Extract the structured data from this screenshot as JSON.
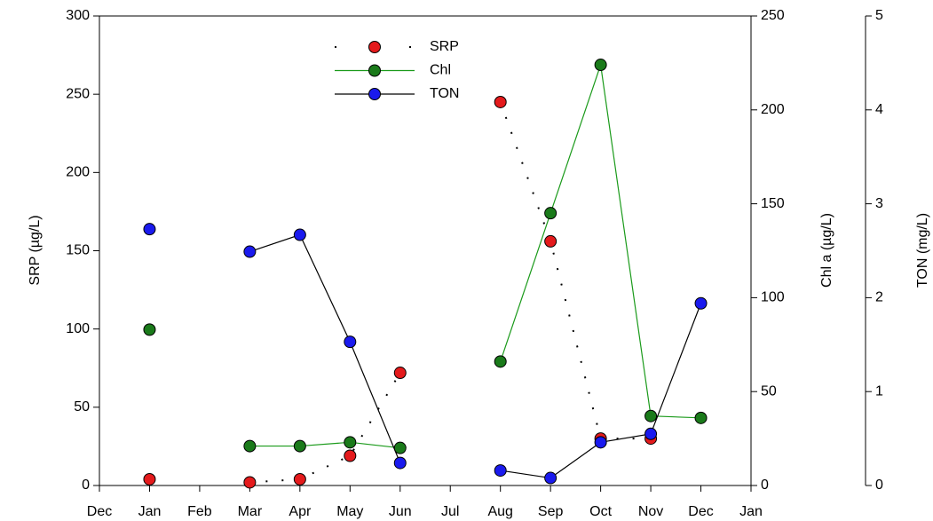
{
  "chart_data": {
    "type": "line",
    "categories": [
      "Dec",
      "Jan",
      "Feb",
      "Mar",
      "Apr",
      "May",
      "Jun",
      "Jul",
      "Aug",
      "Sep",
      "Oct",
      "Nov",
      "Dec",
      "Jan"
    ],
    "ylabel": "SRP (µg/L)",
    "y2label": "Chl a (µg/L)",
    "y3label": "TON (mg/L)",
    "ylim": [
      0,
      300
    ],
    "yticks": [
      0,
      50,
      100,
      150,
      200,
      250,
      300
    ],
    "y2lim": [
      0,
      250
    ],
    "y2ticks": [
      0,
      50,
      100,
      150,
      200,
      250
    ],
    "y3lim": [
      0,
      5
    ],
    "y3ticks": [
      0,
      1,
      2,
      3,
      4,
      5
    ],
    "series": [
      {
        "name": "SRP",
        "color": "#e41a1c",
        "line_color": "#000000",
        "line_style": "dotted",
        "axis": "y",
        "values": [
          null,
          4,
          null,
          2,
          4,
          19,
          72,
          null,
          245,
          156,
          30,
          30,
          null,
          null
        ]
      },
      {
        "name": "Chl",
        "color": "#1a7a1a",
        "line_color": "#1a9a1a",
        "line_style": "solid",
        "axis": "y2",
        "values": [
          null,
          83,
          null,
          21,
          21,
          23,
          20,
          null,
          66,
          145,
          224,
          37,
          36,
          null
        ]
      },
      {
        "name": "TON",
        "color": "#1a1aee",
        "line_color": "#000000",
        "line_style": "solid",
        "axis": "y3",
        "values": [
          null,
          2.73,
          null,
          2.49,
          2.67,
          1.53,
          0.24,
          null,
          0.16,
          0.08,
          0.46,
          0.55,
          1.94,
          null
        ]
      }
    ]
  }
}
